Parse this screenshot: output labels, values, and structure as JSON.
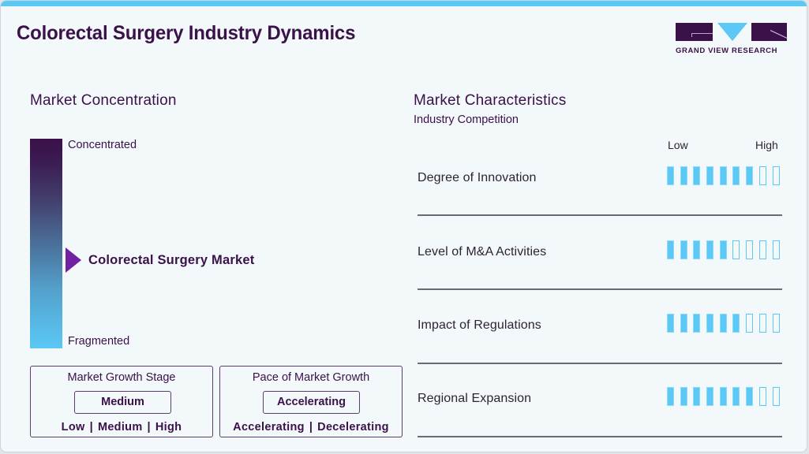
{
  "header": {
    "title": "Colorectal Surgery Industry Dynamics",
    "logo_text": "GRAND VIEW RESEARCH"
  },
  "colors": {
    "primary": "#3a1148",
    "accent": "#5bc8f5",
    "marker": "#7222a0",
    "background": "#f3f8fb"
  },
  "market_concentration": {
    "title": "Market Concentration",
    "top_label": "Concentrated",
    "bottom_label": "Fragmented",
    "marker_label": "Colorectal Surgery Market",
    "marker_position_pct": 58
  },
  "cards": [
    {
      "title": "Market Growth Stage",
      "value": "Medium",
      "options": [
        "Low",
        "Medium",
        "High"
      ]
    },
    {
      "title": "Pace of Market Growth",
      "value": "Accelerating",
      "options": [
        "Accelerating",
        "Decelerating"
      ]
    }
  ],
  "market_characteristics": {
    "title": "Market Characteristics",
    "subtitle": "Industry Competition",
    "scale_low": "Low",
    "scale_high": "High",
    "total_segments": 9,
    "rows": [
      {
        "label": "Degree of Innovation",
        "filled": 7
      },
      {
        "label": "Level of M&A Activities",
        "filled": 5
      },
      {
        "label": "Impact of Regulations",
        "filled": 6
      },
      {
        "label": "Regional Expansion",
        "filled": 7
      }
    ]
  }
}
